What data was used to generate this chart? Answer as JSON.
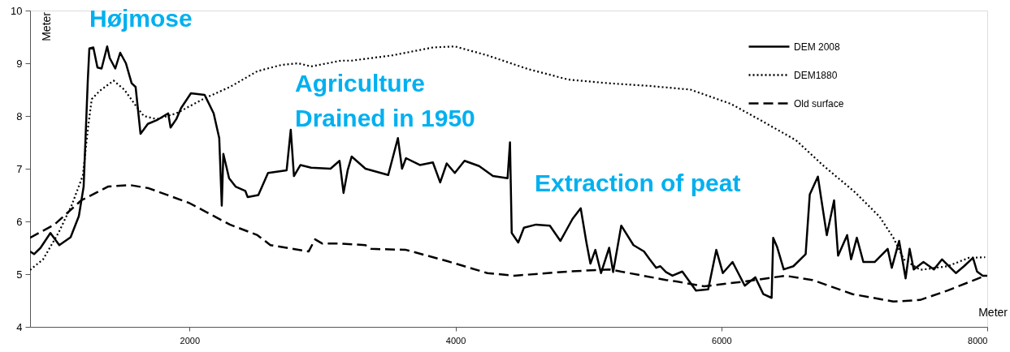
{
  "chart_data": {
    "type": "line",
    "xlabel": "Meter",
    "ylabel": "Meter",
    "xlim": [
      800,
      8000
    ],
    "xticks": [
      2000,
      4000,
      6000,
      8000
    ],
    "ylim": [
      4,
      10
    ],
    "yticks": [
      4,
      5,
      6,
      7,
      8,
      9,
      10
    ],
    "grid": false,
    "legend": "top right",
    "marker": "none",
    "annotations": [
      "Højmose",
      "Agriculture",
      "Drained in 1950",
      "Extraction of peat"
    ],
    "series": [
      {
        "name": "DEM 2008",
        "color": "#000000",
        "line_style": "solid",
        "x": [
          800,
          830,
          879,
          953,
          1020,
          1105,
          1167,
          1203,
          1234,
          1246,
          1276,
          1307,
          1338,
          1380,
          1399,
          1441,
          1478,
          1521,
          1564,
          1594,
          1631,
          1686,
          1753,
          1839,
          1857,
          1900,
          1936,
          2010,
          2113,
          2181,
          2223,
          2242,
          2254,
          2297,
          2346,
          2419,
          2437,
          2517,
          2590,
          2730,
          2761,
          2785,
          2834,
          2914,
          3060,
          3128,
          3158,
          3189,
          3219,
          3323,
          3494,
          3567,
          3598,
          3628,
          3732,
          3830,
          3885,
          3934,
          3995,
          4068,
          4178,
          4282,
          4392,
          4410,
          4423,
          4472,
          4515,
          4606,
          4710,
          4789,
          4881,
          4942,
          4985,
          5015,
          5052,
          5095,
          5156,
          5186,
          5247,
          5339,
          5418,
          5461,
          5510,
          5541,
          5583,
          5632,
          5706,
          5809,
          5901,
          5962,
          6011,
          6084,
          6176,
          6255,
          6316,
          6378,
          6390,
          6420,
          6469,
          6542,
          6634,
          6665,
          6726,
          6793,
          6848,
          6878,
          6946,
          6976,
          7019,
          7068,
          7153,
          7251,
          7282,
          7337,
          7386,
          7416,
          7447,
          7520,
          7599,
          7660,
          7764,
          7825,
          7893,
          7923,
          7966,
          8000
        ],
        "values": [
          5.43,
          5.38,
          5.5,
          5.78,
          5.55,
          5.7,
          6.1,
          6.66,
          8.66,
          9.28,
          9.3,
          8.92,
          8.9,
          9.32,
          9.1,
          8.9,
          9.2,
          9.0,
          8.62,
          8.55,
          7.66,
          7.85,
          7.92,
          8.05,
          7.78,
          7.94,
          8.15,
          8.43,
          8.4,
          8.05,
          7.58,
          6.3,
          7.28,
          6.82,
          6.66,
          6.58,
          6.46,
          6.5,
          6.92,
          6.97,
          7.74,
          6.86,
          7.07,
          7.02,
          7.0,
          7.15,
          6.54,
          6.97,
          7.23,
          7.0,
          6.88,
          7.58,
          7.0,
          7.2,
          7.07,
          7.12,
          6.74,
          7.1,
          6.92,
          7.15,
          7.05,
          6.86,
          6.82,
          7.5,
          5.78,
          5.6,
          5.88,
          5.94,
          5.92,
          5.63,
          6.05,
          6.25,
          5.6,
          5.2,
          5.46,
          5.02,
          5.5,
          5.04,
          5.92,
          5.55,
          5.43,
          5.28,
          5.12,
          5.15,
          5.04,
          4.97,
          5.05,
          4.69,
          4.71,
          5.46,
          5.02,
          5.23,
          4.78,
          4.94,
          4.62,
          4.55,
          5.69,
          5.51,
          5.09,
          5.15,
          5.38,
          6.51,
          6.85,
          5.74,
          6.4,
          5.35,
          5.74,
          5.28,
          5.69,
          5.23,
          5.23,
          5.48,
          5.12,
          5.63,
          4.92,
          5.48,
          5.09,
          5.23,
          5.09,
          5.28,
          5.02,
          5.15,
          5.31,
          5.05,
          4.97,
          4.97
        ]
      },
      {
        "name": "DEM1880",
        "color": "#000000",
        "line_style": "dotted",
        "x": [
          800,
          898,
          1013,
          1112,
          1197,
          1234,
          1264,
          1325,
          1429,
          1509,
          1594,
          1655,
          1753,
          1900,
          2101,
          2303,
          2510,
          2694,
          2816,
          2914,
          3140,
          3219,
          3525,
          3830,
          3995,
          4240,
          4545,
          4850,
          5156,
          5461,
          5767,
          6072,
          6316,
          6561,
          6762,
          7007,
          7190,
          7294,
          7373,
          7495,
          7703,
          7862,
          7984
        ],
        "values": [
          5.08,
          5.28,
          5.78,
          6.3,
          6.87,
          7.74,
          8.32,
          8.48,
          8.67,
          8.5,
          8.2,
          8.0,
          7.94,
          8.05,
          8.32,
          8.55,
          8.85,
          8.97,
          9.0,
          8.94,
          9.05,
          9.05,
          9.15,
          9.3,
          9.32,
          9.15,
          8.89,
          8.69,
          8.62,
          8.57,
          8.5,
          8.23,
          7.89,
          7.54,
          7.07,
          6.55,
          6.09,
          5.69,
          5.28,
          5.08,
          5.15,
          5.31,
          5.32
        ]
      },
      {
        "name": "Old surface",
        "color": "#000000",
        "line_style": "dashed",
        "x": [
          800,
          983,
          1185,
          1386,
          1551,
          1692,
          1997,
          2303,
          2510,
          2608,
          2895,
          2944,
          2999,
          3140,
          3323,
          3366,
          3628,
          3934,
          4240,
          4441,
          4850,
          5156,
          5583,
          5663,
          5870,
          6176,
          6481,
          6683,
          6988,
          7294,
          7495,
          7703,
          7984
        ],
        "values": [
          5.69,
          5.94,
          6.4,
          6.66,
          6.69,
          6.63,
          6.35,
          5.94,
          5.74,
          5.55,
          5.43,
          5.66,
          5.58,
          5.58,
          5.55,
          5.48,
          5.46,
          5.25,
          5.02,
          4.97,
          5.05,
          5.09,
          4.89,
          4.86,
          4.77,
          4.86,
          4.97,
          4.89,
          4.62,
          4.48,
          4.51,
          4.69,
          4.97
        ]
      }
    ]
  }
}
